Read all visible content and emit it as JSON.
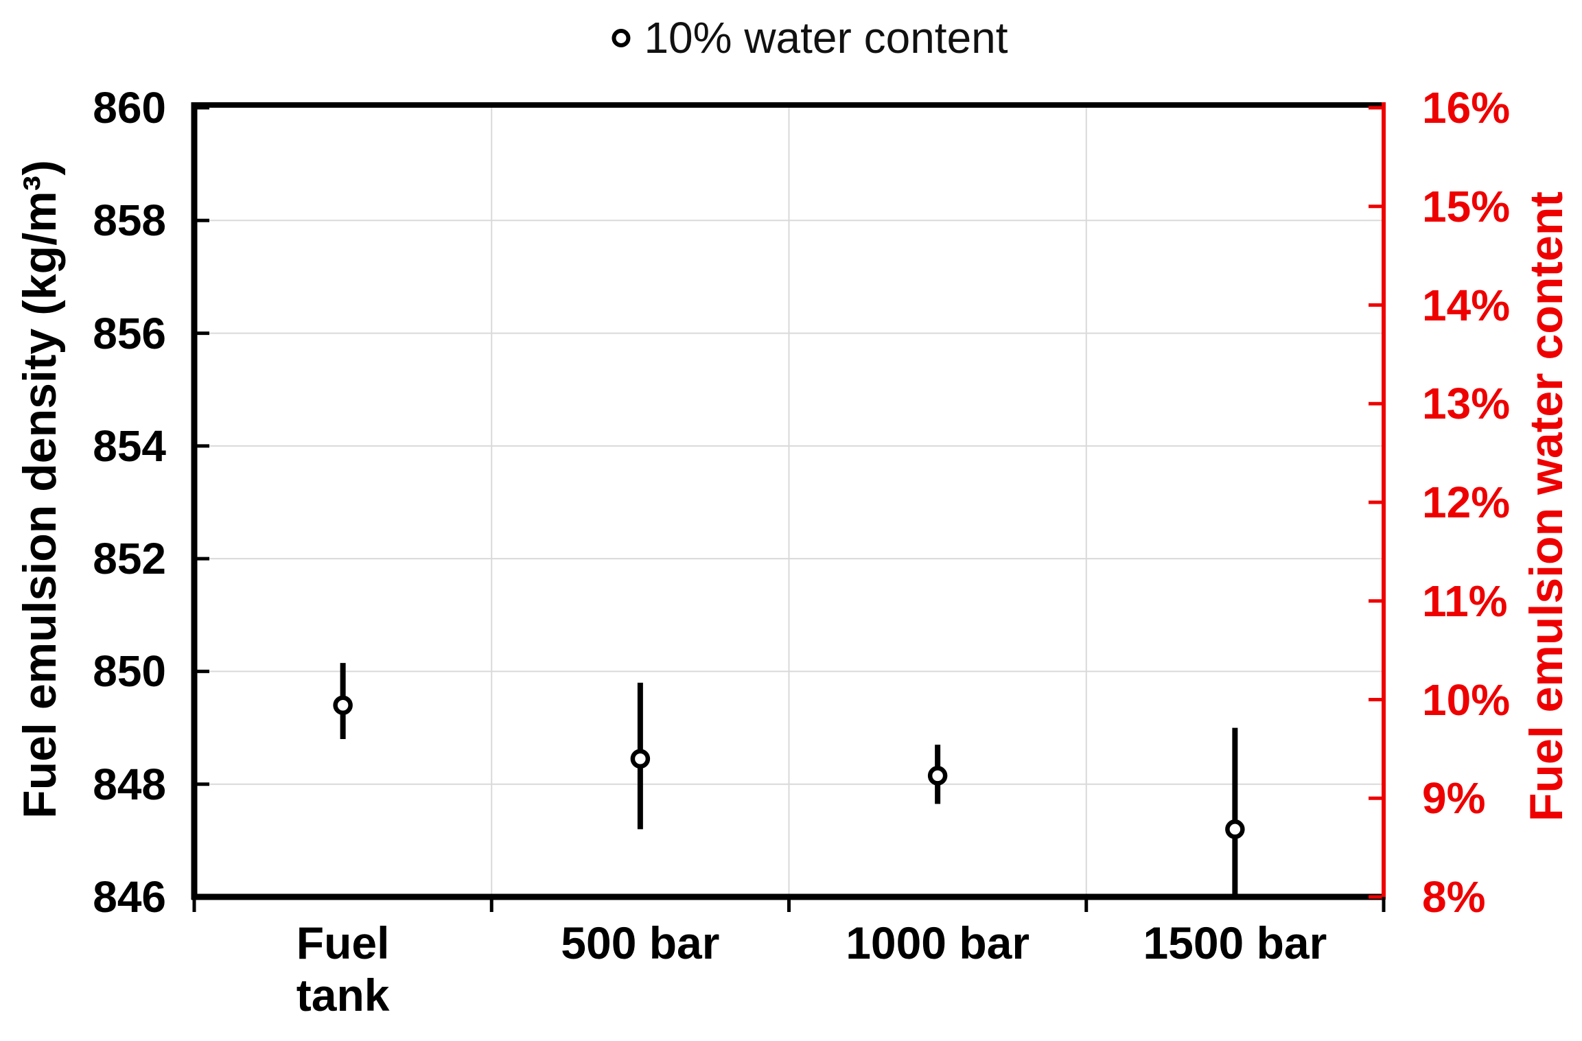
{
  "chart_data": {
    "type": "scatter",
    "title": "",
    "legend": {
      "label": "10% water content",
      "marker": "open-circle",
      "position": "top-center"
    },
    "categories": [
      "Fuel\ntank",
      "500 bar",
      "1000 bar",
      "1500 bar"
    ],
    "series": [
      {
        "name": "10% water content",
        "values": [
          849.4,
          848.45,
          848.15,
          847.2
        ],
        "error_hi": [
          850.15,
          849.8,
          848.7,
          849.0
        ],
        "error_lo": [
          848.8,
          847.2,
          847.65,
          846.05
        ],
        "marker": {
          "shape": "open-circle",
          "stroke": "#000000",
          "fill": "#ffffff"
        }
      }
    ],
    "left_axis": {
      "title": "Fuel emulsion density (kg/m³)",
      "min": 846,
      "max": 860,
      "tick_step": 2,
      "ticks": [
        860,
        858,
        856,
        854,
        852,
        850,
        848,
        846
      ],
      "color": "#000000"
    },
    "right_axis": {
      "title": "Fuel emulsion water content",
      "min": 8,
      "max": 16,
      "tick_step": 1,
      "ticks": [
        "16%",
        "15%",
        "14%",
        "13%",
        "12%",
        "11%",
        "10%",
        "9%",
        "8%"
      ],
      "color": "#ee0000"
    },
    "grid": {
      "horizontal": true,
      "vertical": true,
      "color": "#d9d9d9"
    },
    "xlabel": "",
    "ylabel": "Fuel emulsion density (kg/m³)"
  }
}
